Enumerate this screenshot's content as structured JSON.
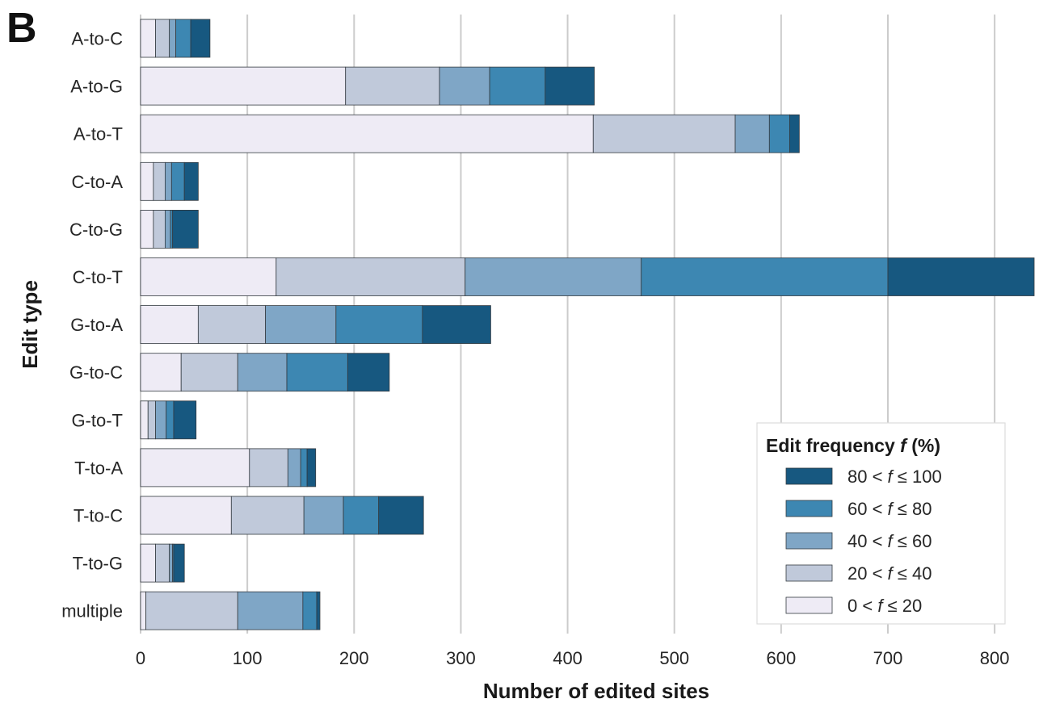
{
  "panel_label": "B",
  "chart_data": {
    "type": "bar",
    "orientation": "horizontal",
    "stacked": true,
    "xlabel": "Number of edited sites",
    "ylabel": "Edit type",
    "xlim": [
      0,
      840
    ],
    "xticks": [
      0,
      100,
      200,
      300,
      400,
      500,
      600,
      700,
      800
    ],
    "grid": "vertical",
    "legend": {
      "title_main": "Edit frequency ",
      "title_var": "f",
      "title_tail": " (%)",
      "placement": "bottom-right"
    },
    "categories": [
      "A-to-C",
      "A-to-G",
      "A-to-T",
      "C-to-A",
      "C-to-G",
      "C-to-T",
      "G-to-A",
      "G-to-C",
      "G-to-T",
      "T-to-A",
      "T-to-C",
      "T-to-G",
      "multiple"
    ],
    "series": [
      {
        "name": "0 < f ≤ 20",
        "lo": "0",
        "hi": "20",
        "color": "#eeebf5",
        "values": [
          14,
          192,
          424,
          12,
          12,
          127,
          54,
          38,
          7,
          102,
          85,
          14,
          5
        ]
      },
      {
        "name": "20 < f ≤ 40",
        "lo": "20",
        "hi": "40",
        "color": "#c0c9da",
        "values": [
          13,
          88,
          133,
          11,
          11,
          177,
          63,
          53,
          7,
          36,
          68,
          13,
          86
        ]
      },
      {
        "name": "40 < f ≤ 60",
        "lo": "40",
        "hi": "60",
        "color": "#7fa6c6",
        "values": [
          6,
          47,
          32,
          6,
          5,
          165,
          66,
          46,
          10,
          12,
          37,
          3,
          61
        ]
      },
      {
        "name": "60 < f ≤ 80",
        "lo": "60",
        "hi": "80",
        "color": "#3d87b2",
        "values": [
          14,
          52,
          19,
          12,
          2,
          231,
          81,
          57,
          7,
          6,
          33,
          1,
          13
        ]
      },
      {
        "name": "80 < f ≤ 100",
        "lo": "80",
        "hi": "100",
        "color": "#175880",
        "values": [
          18,
          46,
          9,
          13,
          24,
          137,
          64,
          39,
          21,
          8,
          42,
          10,
          3
        ]
      }
    ]
  }
}
